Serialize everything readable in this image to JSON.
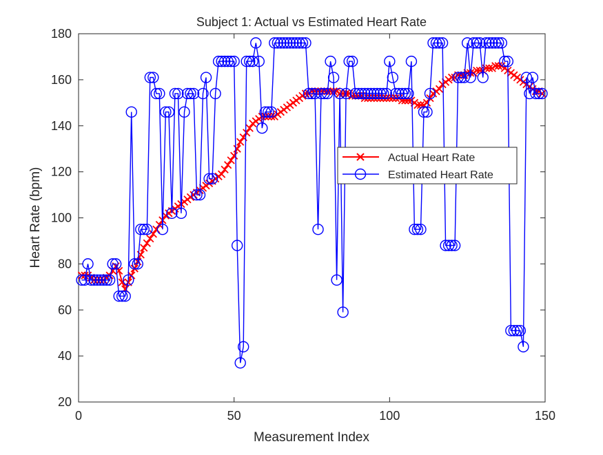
{
  "chart_data": {
    "type": "line",
    "title": "Subject 1: Actual vs Estimated Heart Rate",
    "xlabel": "Measurement Index",
    "ylabel": "Heart Rate (bpm)",
    "xlim": [
      0,
      150
    ],
    "ylim": [
      20,
      180
    ],
    "xticks": [
      0,
      50,
      100,
      150
    ],
    "yticks": [
      20,
      40,
      60,
      80,
      100,
      120,
      140,
      160,
      180
    ],
    "grid": false,
    "legend_position": "center-right",
    "series": [
      {
        "name": "Actual Heart Rate",
        "color": "#ff0000",
        "marker": "x",
        "x": [
          1,
          2,
          3,
          4,
          5,
          6,
          7,
          8,
          9,
          10,
          11,
          12,
          13,
          14,
          15,
          16,
          17,
          18,
          19,
          20,
          21,
          22,
          23,
          24,
          25,
          26,
          27,
          28,
          29,
          30,
          31,
          32,
          33,
          34,
          35,
          36,
          37,
          38,
          39,
          40,
          41,
          42,
          43,
          44,
          45,
          46,
          47,
          48,
          49,
          50,
          51,
          52,
          53,
          54,
          55,
          56,
          57,
          58,
          59,
          60,
          61,
          62,
          63,
          64,
          65,
          66,
          67,
          68,
          69,
          70,
          71,
          72,
          73,
          74,
          75,
          76,
          77,
          78,
          79,
          80,
          81,
          82,
          83,
          84,
          85,
          86,
          87,
          88,
          89,
          90,
          91,
          92,
          93,
          94,
          95,
          96,
          97,
          98,
          99,
          100,
          101,
          102,
          103,
          104,
          105,
          106,
          107,
          108,
          109,
          110,
          111,
          112,
          113,
          114,
          115,
          116,
          117,
          118,
          119,
          120,
          121,
          122,
          123,
          124,
          125,
          126,
          127,
          128,
          129,
          130,
          131,
          132,
          133,
          134,
          135,
          136,
          137,
          138,
          139,
          140,
          141,
          142,
          143,
          144,
          145,
          146,
          147,
          148,
          149
        ],
        "y": [
          75,
          75,
          75,
          74,
          73,
          73,
          73,
          73,
          74,
          75,
          77,
          79,
          77,
          72,
          69,
          72,
          75,
          78,
          81,
          84,
          87,
          89,
          91,
          93,
          95,
          97,
          99,
          101,
          102,
          103,
          104,
          105,
          106,
          107,
          108,
          109,
          110,
          111,
          112,
          113,
          114,
          115,
          116,
          117,
          118,
          119,
          121,
          123,
          125,
          127,
          130,
          133,
          135,
          137,
          139,
          141,
          142,
          143,
          144,
          144,
          144,
          144,
          144,
          145,
          146,
          147,
          148,
          149,
          150,
          151,
          152,
          153,
          154,
          154,
          155,
          155,
          155,
          155,
          155,
          155,
          155,
          155,
          155,
          154,
          154,
          154,
          154,
          153,
          153,
          153,
          153,
          152,
          152,
          152,
          152,
          152,
          152,
          152,
          152,
          152,
          152,
          152,
          152,
          151,
          151,
          151,
          151,
          150,
          149,
          149,
          149,
          150,
          152,
          154,
          155,
          156,
          158,
          159,
          160,
          161,
          161,
          162,
          162,
          162,
          163,
          163,
          163,
          164,
          164,
          164,
          165,
          165,
          165,
          166,
          166,
          166,
          165,
          164,
          163,
          162,
          161,
          160,
          159,
          158,
          157,
          156,
          155,
          155,
          154
        ]
      },
      {
        "name": "Estimated Heart Rate",
        "color": "#0000ff",
        "marker": "o",
        "x": [
          1,
          2,
          3,
          4,
          5,
          6,
          7,
          8,
          9,
          10,
          11,
          12,
          13,
          14,
          15,
          16,
          17,
          18,
          19,
          20,
          21,
          22,
          23,
          24,
          25,
          26,
          27,
          28,
          29,
          30,
          31,
          32,
          33,
          34,
          35,
          36,
          37,
          38,
          39,
          40,
          41,
          42,
          43,
          44,
          45,
          46,
          47,
          48,
          49,
          50,
          51,
          52,
          53,
          54,
          55,
          56,
          57,
          58,
          59,
          60,
          61,
          62,
          63,
          64,
          65,
          66,
          67,
          68,
          69,
          70,
          71,
          72,
          73,
          74,
          75,
          76,
          77,
          78,
          79,
          80,
          81,
          82,
          83,
          84,
          85,
          86,
          87,
          88,
          89,
          90,
          91,
          92,
          93,
          94,
          95,
          96,
          97,
          98,
          99,
          100,
          101,
          102,
          103,
          104,
          105,
          106,
          107,
          108,
          109,
          110,
          111,
          112,
          113,
          114,
          115,
          116,
          117,
          118,
          119,
          120,
          121,
          122,
          123,
          124,
          125,
          126,
          127,
          128,
          129,
          130,
          131,
          132,
          133,
          134,
          135,
          136,
          137,
          138,
          139,
          140,
          141,
          142,
          143,
          144,
          145,
          146,
          147,
          148,
          149
        ],
        "y": [
          73,
          73,
          80,
          73,
          73,
          73,
          73,
          73,
          73,
          73,
          80,
          80,
          66,
          66,
          66,
          73,
          146,
          80,
          80,
          95,
          95,
          95,
          161,
          161,
          154,
          154,
          95,
          146,
          146,
          102,
          154,
          154,
          102,
          146,
          154,
          154,
          154,
          110,
          110,
          154,
          161,
          117,
          117,
          154,
          168,
          168,
          168,
          168,
          168,
          168,
          88,
          37,
          44,
          168,
          168,
          168,
          176,
          168,
          139,
          146,
          146,
          146,
          176,
          176,
          176,
          176,
          176,
          176,
          176,
          176,
          176,
          176,
          176,
          154,
          154,
          154,
          95,
          154,
          154,
          154,
          168,
          161,
          73,
          154,
          59,
          154,
          168,
          168,
          154,
          154,
          154,
          154,
          154,
          154,
          154,
          154,
          154,
          154,
          154,
          168,
          161,
          154,
          154,
          154,
          154,
          154,
          168,
          95,
          95,
          95,
          146,
          146,
          154,
          176,
          176,
          176,
          176,
          88,
          88,
          88,
          88,
          161,
          161,
          161,
          176,
          161,
          176,
          176,
          176,
          161,
          176,
          176,
          176,
          176,
          176,
          176,
          168,
          168,
          51,
          51,
          51,
          51,
          44,
          161,
          154,
          161,
          154,
          154,
          154
        ]
      }
    ]
  }
}
